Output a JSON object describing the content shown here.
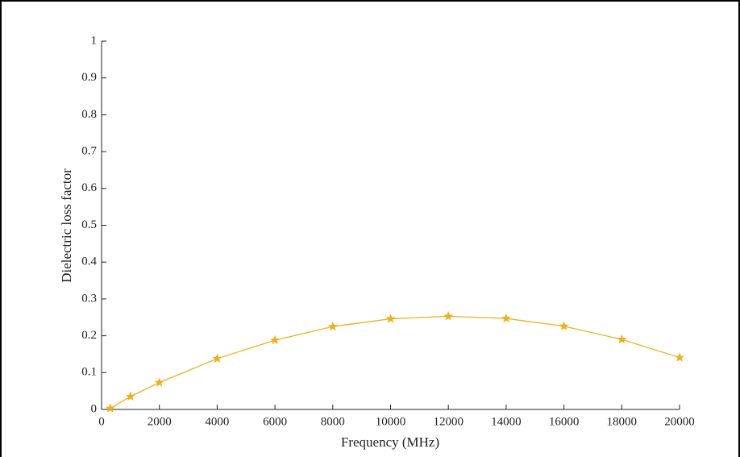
{
  "chart_data": {
    "type": "line",
    "xlabel": "Frequency (MHz)",
    "ylabel": "Dielectric loss factor",
    "x": [
      300,
      1000,
      2000,
      4000,
      6000,
      8000,
      10000,
      12000,
      14000,
      16000,
      18000,
      20000
    ],
    "series": [
      {
        "color": "#EDB120",
        "marker": "star",
        "values": [
          0.003,
          0.035,
          0.073,
          0.138,
          0.188,
          0.225,
          0.246,
          0.253,
          0.247,
          0.226,
          0.19,
          0.141
        ]
      }
    ],
    "xlim": [
      0,
      20000
    ],
    "xticks": [
      0,
      2000,
      4000,
      6000,
      8000,
      10000,
      12000,
      14000,
      16000,
      18000,
      20000
    ],
    "ylim": [
      0,
      1
    ],
    "yticks": [
      0,
      0.1,
      0.2,
      0.3,
      0.4,
      0.5,
      0.6,
      0.7,
      0.8,
      0.9,
      1
    ],
    "grid": false
  }
}
